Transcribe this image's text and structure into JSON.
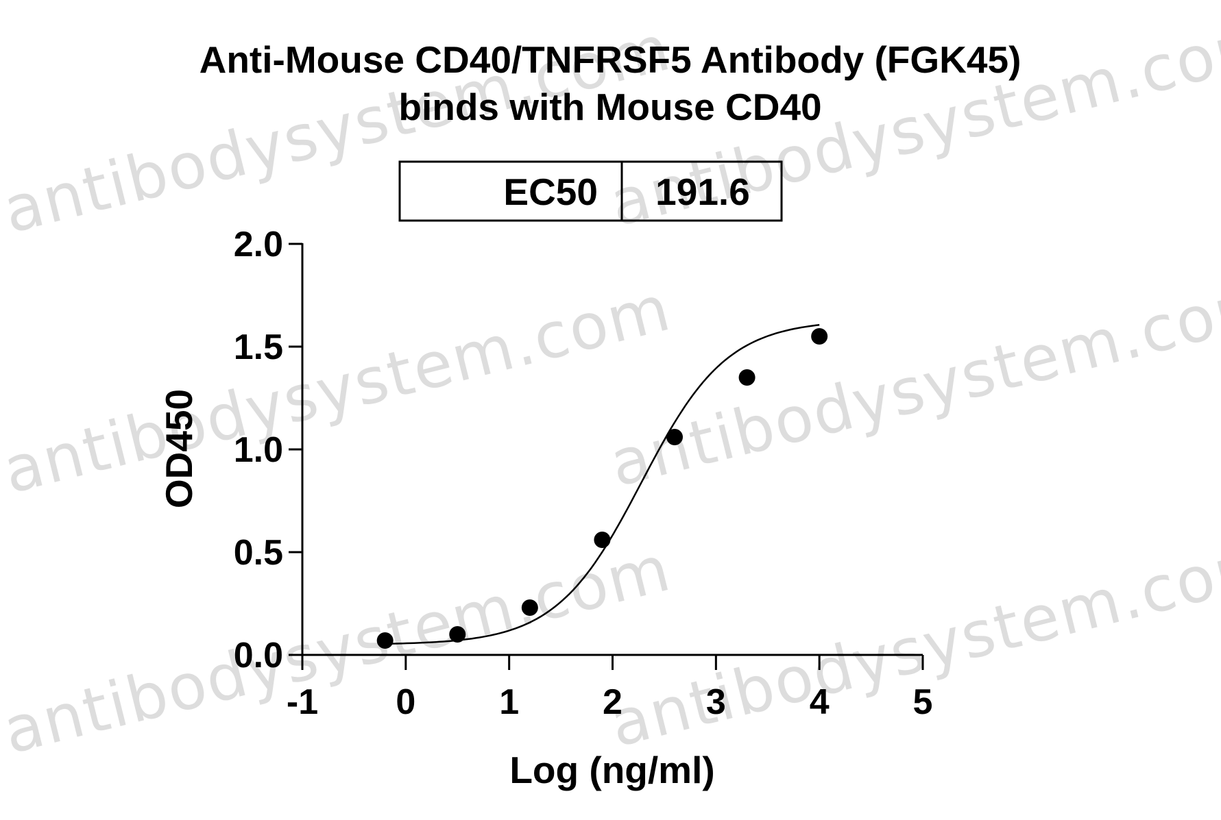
{
  "chart_data": {
    "type": "scatter",
    "title_lines": [
      "Anti-Mouse CD40/TNFRSF5 Antibody (FGK45)",
      "binds with Mouse CD40"
    ],
    "xlabel": "Log (ng/ml)",
    "ylabel": "OD450",
    "xlim": [
      -1,
      5
    ],
    "ylim": [
      0,
      2.0
    ],
    "x_ticks": [
      "-1",
      "0",
      "1",
      "2",
      "3",
      "4",
      "5"
    ],
    "y_ticks": [
      "0.0",
      "0.5",
      "1.0",
      "1.5",
      "2.0"
    ],
    "x_tick_values": [
      -1,
      0,
      1,
      2,
      3,
      4,
      5
    ],
    "y_tick_values": [
      0,
      0.5,
      1.0,
      1.5,
      2.0
    ],
    "series": [
      {
        "x": [
          -0.2,
          0.5,
          1.2,
          1.9,
          2.6,
          3.3,
          4.0
        ],
        "y": [
          0.07,
          0.1,
          0.23,
          0.56,
          1.06,
          1.35,
          1.55
        ]
      }
    ],
    "fit_curve": {
      "model": "4PL",
      "bottom": 0.05,
      "top": 1.63,
      "log_ec50": 2.28,
      "hill": 1.05,
      "x_range": [
        -0.2,
        4.0
      ]
    },
    "ec50_table": {
      "label": "EC50",
      "value": "191.6"
    },
    "grid": false,
    "colors": {
      "points": "#000000",
      "line": "#000000"
    }
  },
  "watermark": {
    "text": "antibodysystem.com"
  }
}
